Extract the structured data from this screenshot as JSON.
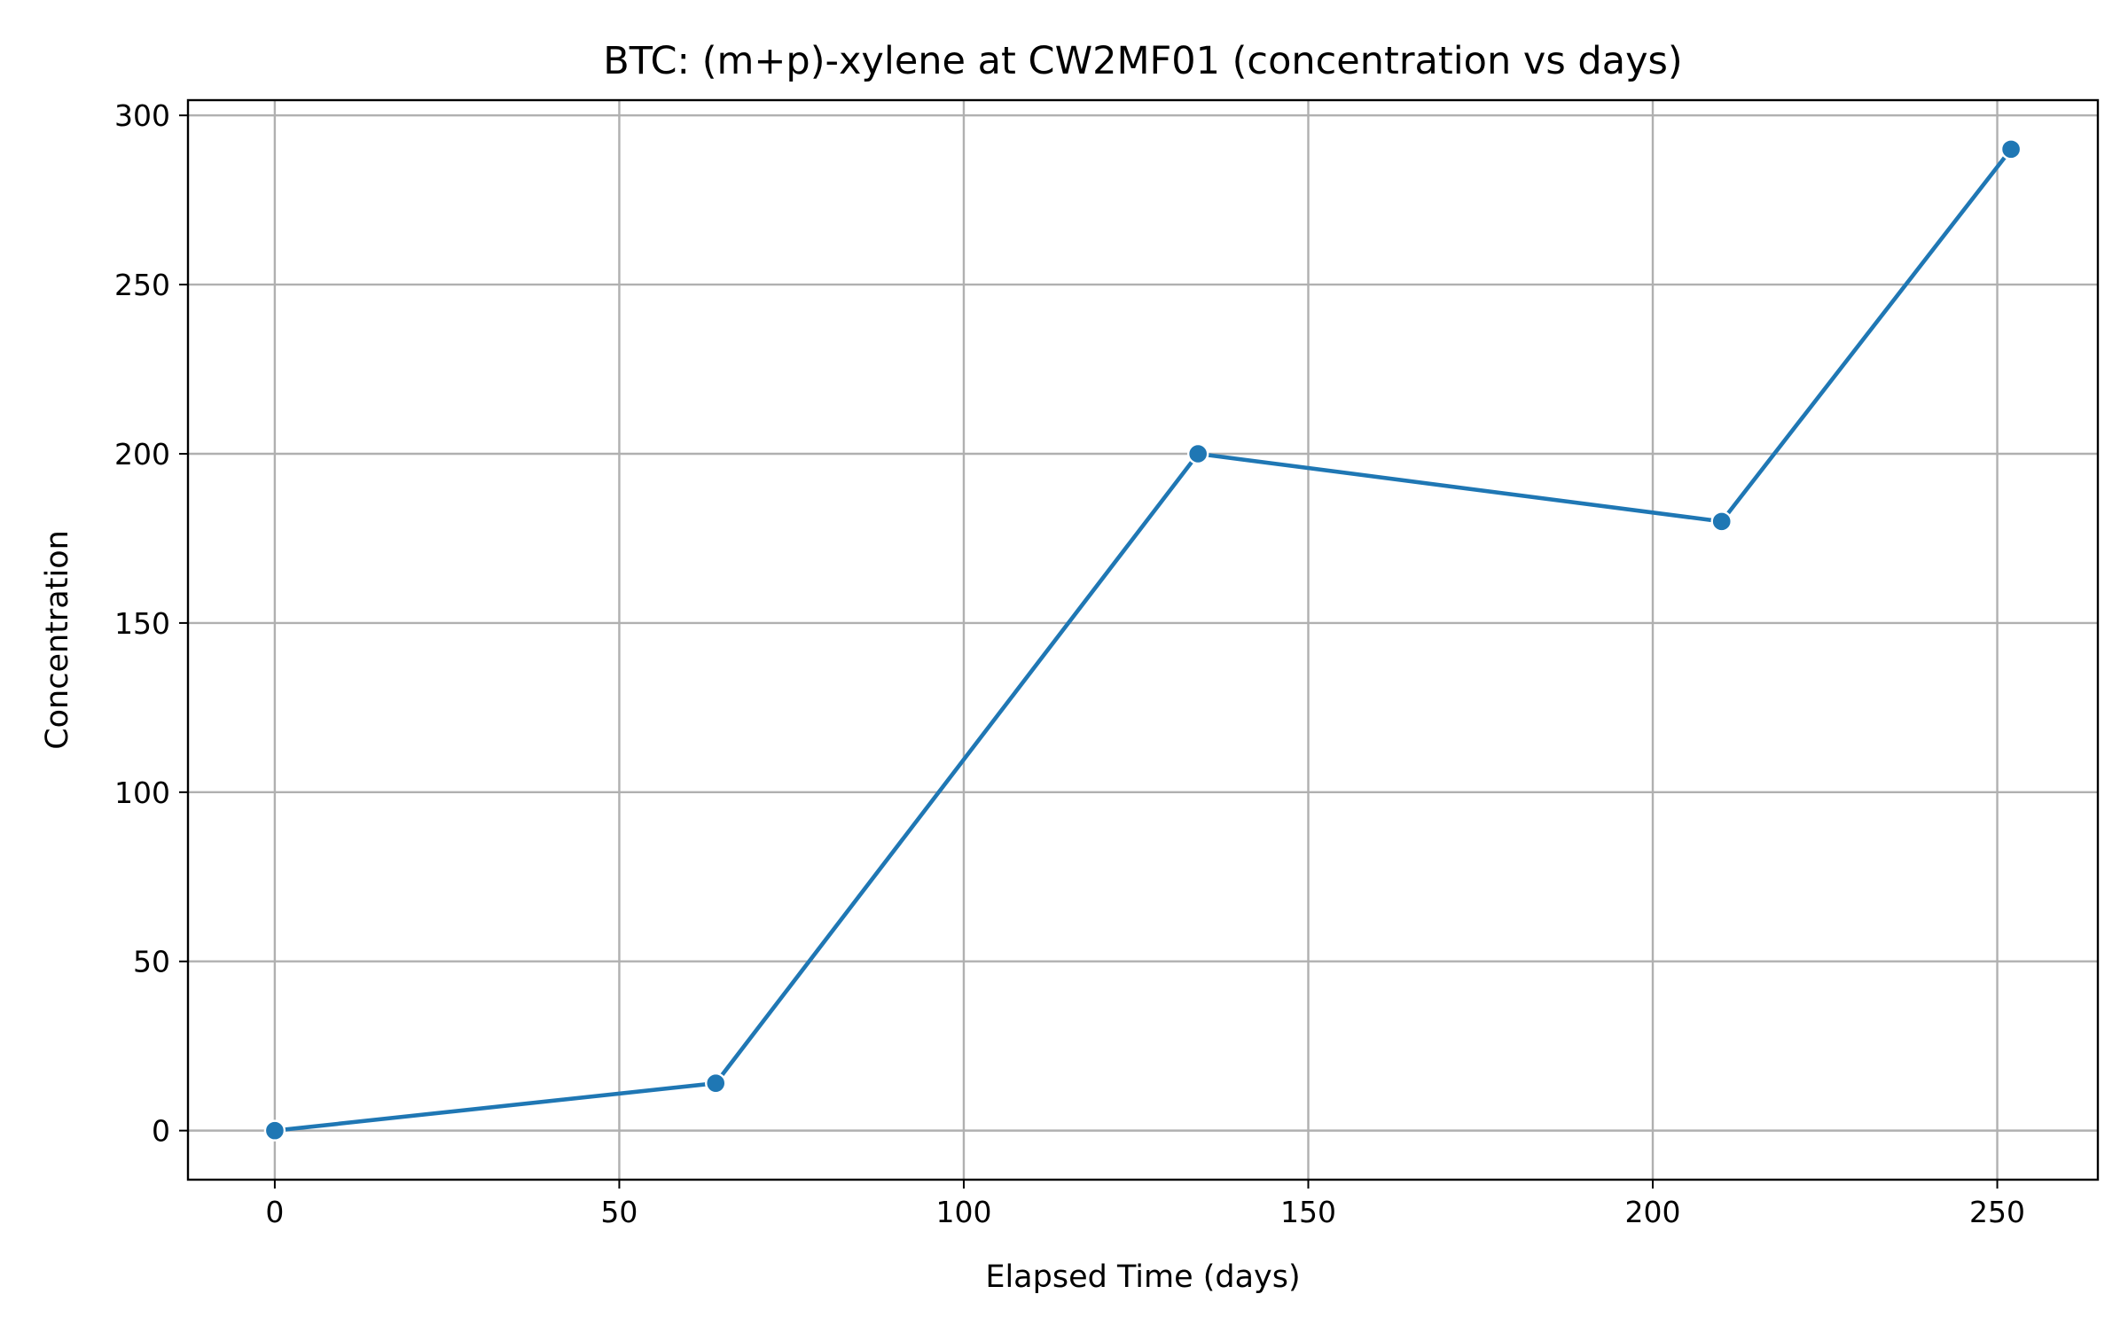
{
  "chart_data": {
    "type": "line",
    "title": "BTC: (m+p)-xylene at CW2MF01 (concentration vs days)",
    "xlabel": "Elapsed Time (days)",
    "ylabel": "Concentration",
    "xlim": [
      -12.6,
      264.6
    ],
    "ylim": [
      -14.5,
      304.5
    ],
    "xticks": [
      0,
      50,
      100,
      150,
      200,
      250
    ],
    "yticks": [
      0,
      50,
      100,
      150,
      200,
      250,
      300
    ],
    "grid": true,
    "series": [
      {
        "color": "#1f77b4",
        "marker": "circle",
        "x": [
          0,
          64,
          134,
          210,
          252
        ],
        "y": [
          0,
          14,
          200,
          180,
          290
        ]
      }
    ]
  }
}
